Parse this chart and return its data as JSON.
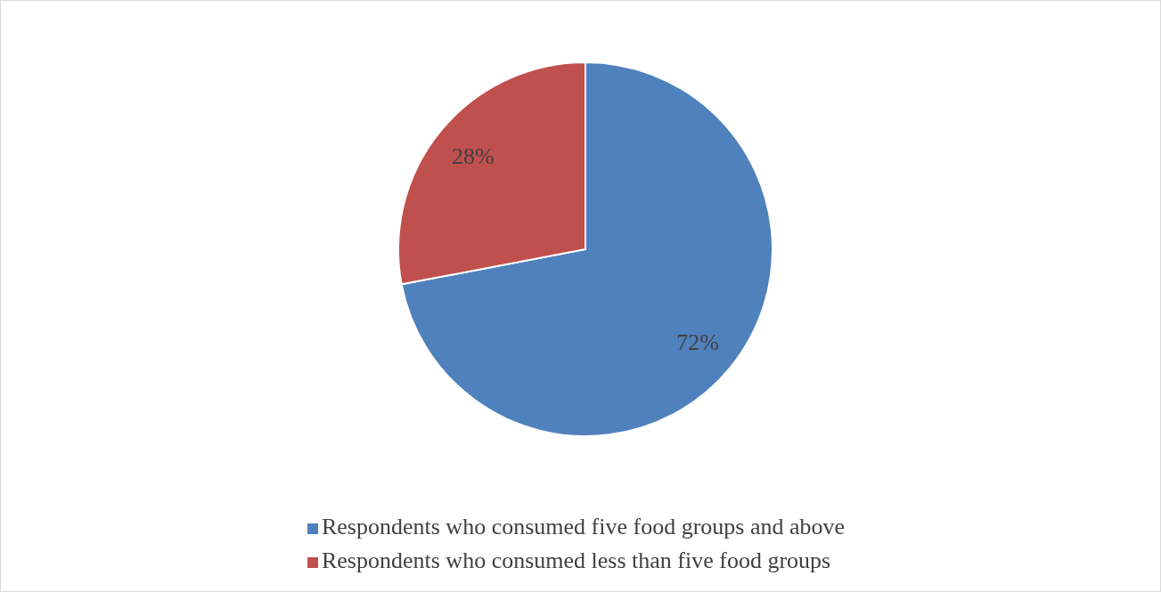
{
  "chart_data": {
    "type": "pie",
    "categories": [
      "Respondents who consumed five food groups and above",
      "Respondents who consumed less than five food groups"
    ],
    "values": [
      72,
      28
    ],
    "colors": [
      "#4f81bd",
      "#c0504d"
    ],
    "value_labels": [
      "72%",
      "28%"
    ],
    "legend": "bottom"
  }
}
